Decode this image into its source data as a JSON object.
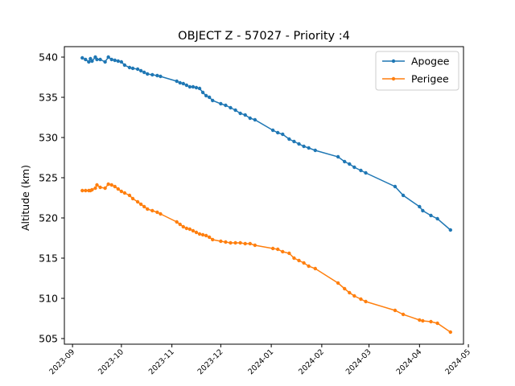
{
  "chart_data": {
    "type": "line",
    "title": "OBJECT Z - 57027 - Priority :4",
    "xlabel": "",
    "ylabel": "Altitude (km)",
    "x_axis_type": "date",
    "xlim": [
      "2023-08-27",
      "2024-04-28"
    ],
    "ylim": [
      504.3,
      541.3
    ],
    "yticks": [
      505,
      510,
      515,
      520,
      525,
      530,
      535,
      540
    ],
    "xticks": [
      "2023-09-01",
      "2023-10-01",
      "2023-11-01",
      "2023-12-01",
      "2024-01-01",
      "2024-02-01",
      "2024-03-01",
      "2024-04-01",
      "2024-05-01"
    ],
    "xtick_labels": [
      "2023-09",
      "2023-10",
      "2023-11",
      "2023-12",
      "2024-01",
      "2024-02",
      "2024-03",
      "2024-04",
      "2024-05"
    ],
    "grid": false,
    "legend_placement": "top-right",
    "series": [
      {
        "name": "Apogee",
        "color": "#1f77b4",
        "x": [
          "2023-09-07",
          "2023-09-09",
          "2023-09-11",
          "2023-09-12",
          "2023-09-13",
          "2023-09-15",
          "2023-09-16",
          "2023-09-18",
          "2023-09-21",
          "2023-09-23",
          "2023-09-25",
          "2023-09-27",
          "2023-09-29",
          "2023-10-01",
          "2023-10-03",
          "2023-10-06",
          "2023-10-08",
          "2023-10-11",
          "2023-10-13",
          "2023-10-15",
          "2023-10-17",
          "2023-10-20",
          "2023-10-23",
          "2023-10-25",
          "2023-11-04",
          "2023-11-06",
          "2023-11-08",
          "2023-11-10",
          "2023-11-12",
          "2023-11-14",
          "2023-11-16",
          "2023-11-18",
          "2023-11-20",
          "2023-11-22",
          "2023-11-24",
          "2023-11-26",
          "2023-12-01",
          "2023-12-04",
          "2023-12-07",
          "2023-12-10",
          "2023-12-13",
          "2023-12-16",
          "2023-12-19",
          "2023-12-22",
          "2024-01-02",
          "2024-01-05",
          "2024-01-08",
          "2024-01-12",
          "2024-01-15",
          "2024-01-18",
          "2024-01-21",
          "2024-01-24",
          "2024-01-28",
          "2024-02-11",
          "2024-02-15",
          "2024-02-18",
          "2024-02-21",
          "2024-02-25",
          "2024-02-28",
          "2024-03-17",
          "2024-03-22",
          "2024-04-01",
          "2024-04-03",
          "2024-04-08",
          "2024-04-12",
          "2024-04-20"
        ],
        "values": [
          539.9,
          539.7,
          539.4,
          539.8,
          539.5,
          540.0,
          539.7,
          539.7,
          539.4,
          540.0,
          539.7,
          539.6,
          539.5,
          539.4,
          539.0,
          538.7,
          538.6,
          538.5,
          538.3,
          538.1,
          537.9,
          537.8,
          537.7,
          537.6,
          537.0,
          536.8,
          536.7,
          536.5,
          536.3,
          536.3,
          536.2,
          536.1,
          535.6,
          535.2,
          535.0,
          534.6,
          534.2,
          534.0,
          533.7,
          533.4,
          533.0,
          532.8,
          532.4,
          532.2,
          530.9,
          530.6,
          530.4,
          529.8,
          529.5,
          529.2,
          528.9,
          528.7,
          528.4,
          527.6,
          527.0,
          526.7,
          526.3,
          525.9,
          525.6,
          523.9,
          522.8,
          521.4,
          520.9,
          520.3,
          519.9,
          518.5
        ]
      },
      {
        "name": "Perigee",
        "color": "#ff7f0e",
        "x": [
          "2023-09-07",
          "2023-09-09",
          "2023-09-11",
          "2023-09-12",
          "2023-09-13",
          "2023-09-15",
          "2023-09-16",
          "2023-09-18",
          "2023-09-21",
          "2023-09-23",
          "2023-09-25",
          "2023-09-27",
          "2023-09-29",
          "2023-10-01",
          "2023-10-03",
          "2023-10-06",
          "2023-10-08",
          "2023-10-11",
          "2023-10-13",
          "2023-10-15",
          "2023-10-17",
          "2023-10-20",
          "2023-10-23",
          "2023-10-25",
          "2023-11-04",
          "2023-11-06",
          "2023-11-08",
          "2023-11-10",
          "2023-11-12",
          "2023-11-14",
          "2023-11-16",
          "2023-11-18",
          "2023-11-20",
          "2023-11-22",
          "2023-11-24",
          "2023-11-26",
          "2023-12-01",
          "2023-12-04",
          "2023-12-07",
          "2023-12-10",
          "2023-12-13",
          "2023-12-16",
          "2023-12-19",
          "2023-12-22",
          "2024-01-02",
          "2024-01-05",
          "2024-01-08",
          "2024-01-12",
          "2024-01-15",
          "2024-01-18",
          "2024-01-21",
          "2024-01-24",
          "2024-01-28",
          "2024-02-11",
          "2024-02-15",
          "2024-02-18",
          "2024-02-21",
          "2024-02-25",
          "2024-02-28",
          "2024-03-17",
          "2024-03-22",
          "2024-04-01",
          "2024-04-03",
          "2024-04-08",
          "2024-04-12",
          "2024-04-20"
        ],
        "values": [
          523.4,
          523.4,
          523.4,
          523.4,
          523.5,
          523.7,
          524.1,
          523.8,
          523.7,
          524.2,
          524.1,
          523.9,
          523.6,
          523.3,
          523.1,
          522.8,
          522.4,
          522.0,
          521.7,
          521.4,
          521.1,
          520.9,
          520.7,
          520.5,
          519.5,
          519.2,
          518.9,
          518.7,
          518.6,
          518.4,
          518.2,
          518.0,
          517.9,
          517.8,
          517.6,
          517.3,
          517.1,
          517.0,
          516.9,
          516.9,
          516.9,
          516.8,
          516.8,
          516.6,
          516.2,
          516.1,
          515.8,
          515.6,
          515.0,
          514.7,
          514.4,
          514.0,
          513.7,
          511.9,
          511.2,
          510.7,
          510.3,
          509.9,
          509.6,
          508.5,
          508.0,
          507.3,
          507.2,
          507.1,
          506.9,
          505.8
        ]
      }
    ]
  }
}
